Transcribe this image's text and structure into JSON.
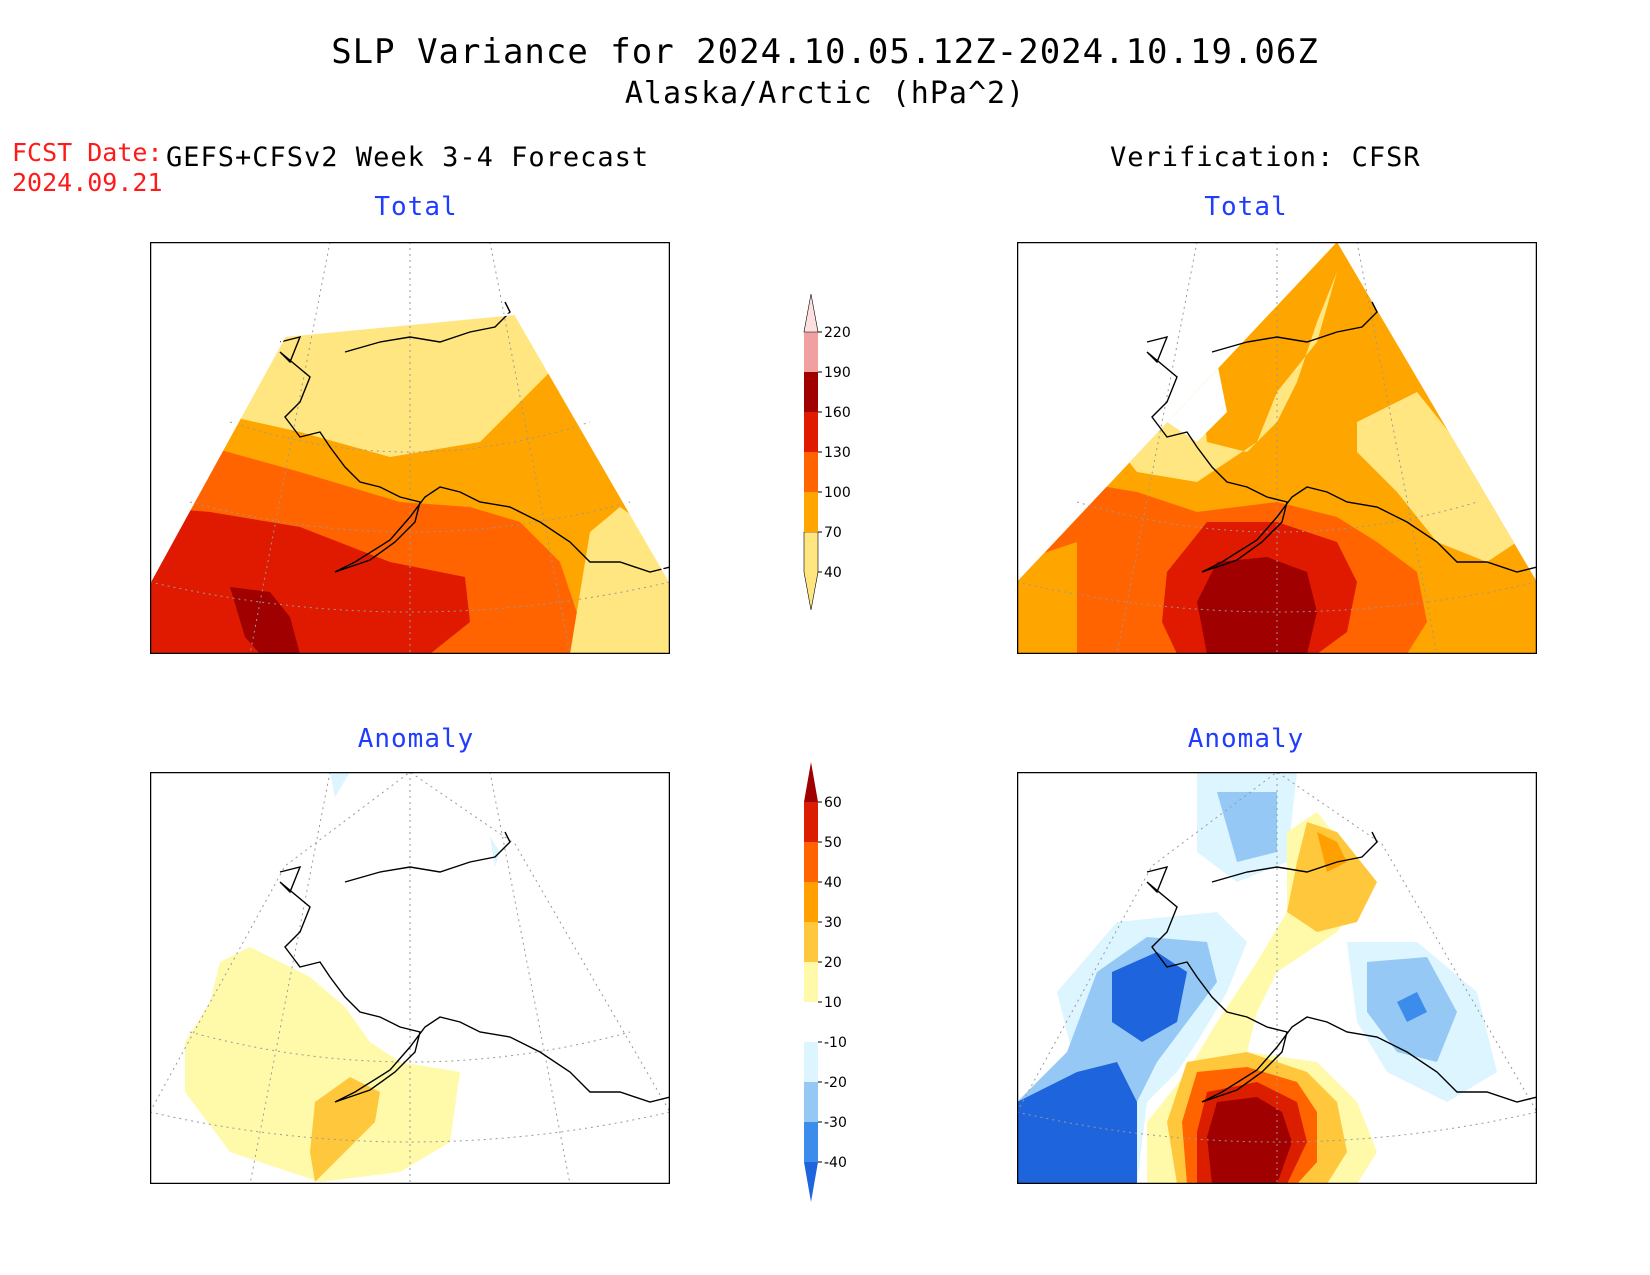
{
  "header": {
    "title_line1": "SLP Variance for 2024.10.05.12Z-2024.10.19.06Z",
    "title_line2": "Alaska/Arctic (hPa^2)",
    "fcst_label": "FCST Date:",
    "fcst_date": "2024.09.21",
    "model_label": "GEFS+CFSv2 Week 3-4 Forecast",
    "verification_label": "Verification: CFSR"
  },
  "panels": {
    "forecast_total": {
      "title": "Total"
    },
    "verification_total": {
      "title": "Total"
    },
    "forecast_anomaly": {
      "title": "Anomaly"
    },
    "verification_anomaly": {
      "title": "Anomaly"
    }
  },
  "colorbar_total": {
    "ticks": [
      "40",
      "70",
      "100",
      "130",
      "160",
      "190",
      "220"
    ],
    "colors": [
      "#ffe680",
      "#ffa500",
      "#ff6400",
      "#e01a00",
      "#a00000",
      "#f0a0a0",
      "#ffe0e0"
    ]
  },
  "colorbar_anomaly": {
    "ticks": [
      "-40",
      "-30",
      "-20",
      "-10",
      "10",
      "20",
      "30",
      "40",
      "50",
      "60"
    ],
    "colors": [
      "#1e64dc",
      "#3c8ceb",
      "#96c8f5",
      "#dcf5ff",
      "#ffffff",
      "#fffaaa",
      "#ffc83c",
      "#ffa000",
      "#ff6400",
      "#dc1e00",
      "#a00000"
    ]
  }
}
